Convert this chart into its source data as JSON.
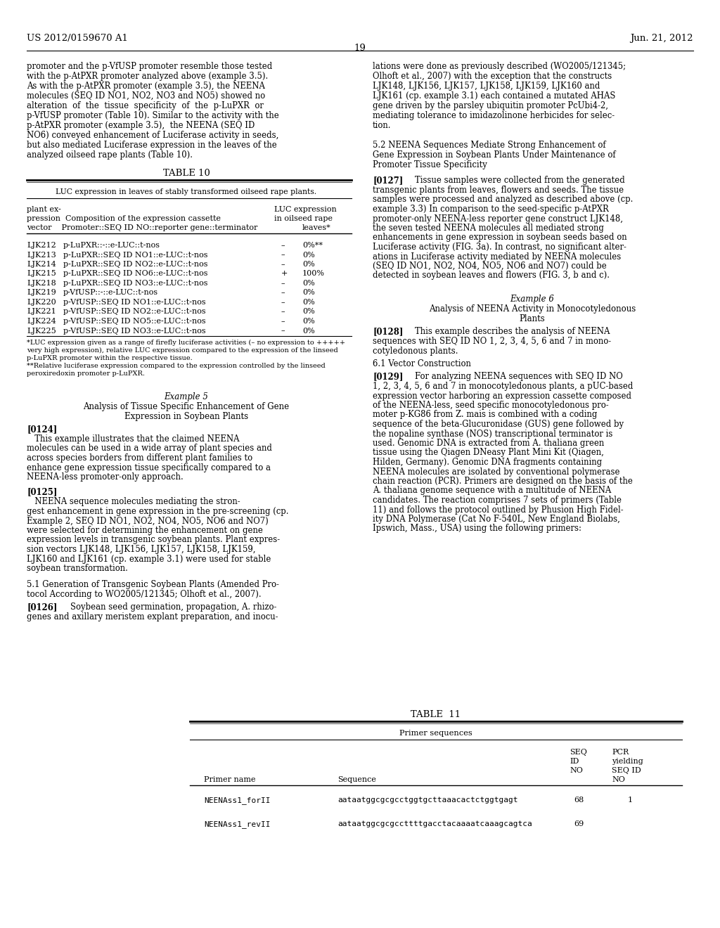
{
  "page_number": "19",
  "patent_number": "US 2012/0159670 A1",
  "patent_date": "Jun. 21, 2012",
  "background_color": "#ffffff"
}
